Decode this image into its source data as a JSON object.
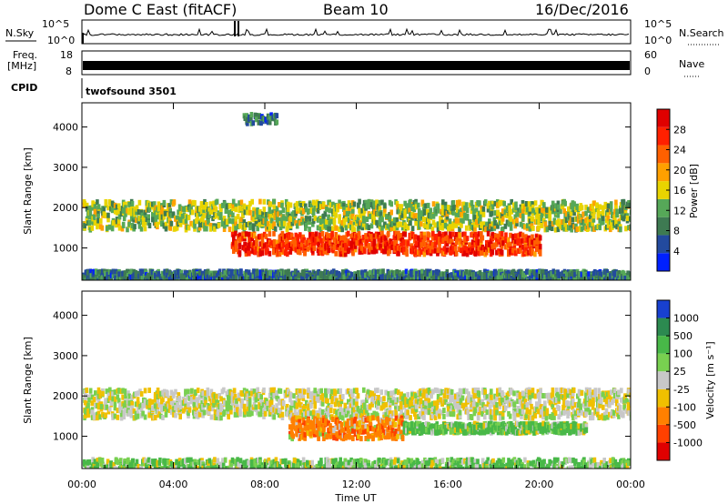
{
  "header": {
    "station": "Dome C East (fitACF)",
    "beam": "Beam 10",
    "date": "16/Dec/2016"
  },
  "status_panels": {
    "nsky_label": "N.Sky",
    "nsearch_label": "N.Search",
    "nsky_ticks": [
      "10^5",
      "10^0"
    ],
    "nsearch_ticks": [
      "10^5",
      "10^0"
    ],
    "freq_label_line1": "Freq.",
    "freq_label_line2": "[MHz]",
    "freq_ticks": [
      "18",
      "8"
    ],
    "nave_label": "Nave",
    "nave_ticks": [
      "60",
      "0"
    ],
    "cpid_label": "CPID",
    "cpid_value": "twofsound 3501"
  },
  "colors": {
    "power_scale": [
      "#0020ff",
      "#234a9e",
      "#3e7a52",
      "#56a858",
      "#e8d400",
      "#ffa000",
      "#ff6000",
      "#ff2000",
      "#e00000"
    ],
    "velocity_scale": [
      "#1840d0",
      "#2c8a50",
      "#48b848",
      "#78d050",
      "#c8c8c8",
      "#f0c000",
      "#ff8000",
      "#ff4000",
      "#e00000"
    ],
    "power_key": "power-scale",
    "velocity_key": "velocity-scale"
  },
  "chart_data": [
    {
      "type": "heatmap",
      "title": "Power",
      "xlabel": "Time UT",
      "ylabel": "Slant Range [km]",
      "x_ticks": [
        "00:00",
        "04:00",
        "08:00",
        "12:00",
        "16:00",
        "20:00",
        "00:00"
      ],
      "y_ticks": [
        1000,
        2000,
        3000,
        4000
      ],
      "ylim": [
        200,
        4600
      ],
      "xlim": [
        0,
        24
      ],
      "colorbar_label": "Power [dB]",
      "colorbar_ticks": [
        4,
        8,
        12,
        16,
        20,
        24,
        28
      ],
      "colorbar_range": [
        0,
        32
      ],
      "echo_bands": [
        {
          "t_start": 0,
          "t_end": 24,
          "range": 1800,
          "value": 14
        },
        {
          "t_start": 6.5,
          "t_end": 20,
          "range": 1100,
          "value": 26
        },
        {
          "t_start": 0,
          "t_end": 24,
          "range": 300,
          "value": 8
        },
        {
          "t_start": 7,
          "t_end": 8.5,
          "range": 4200,
          "value": 8
        }
      ]
    },
    {
      "type": "heatmap",
      "title": "Velocity",
      "xlabel": "Time UT",
      "ylabel": "Slant Range [km]",
      "x_ticks": [
        "00:00",
        "04:00",
        "08:00",
        "12:00",
        "16:00",
        "20:00",
        "00:00"
      ],
      "y_ticks": [
        1000,
        2000,
        3000,
        4000
      ],
      "ylim": [
        200,
        4600
      ],
      "xlim": [
        0,
        24
      ],
      "colorbar_label": "Velocity [m s⁻¹]",
      "colorbar_ticks": [
        1000,
        500,
        100,
        25,
        -25,
        -100,
        -500,
        -1000
      ],
      "echo_bands": [
        {
          "t_start": 0,
          "t_end": 24,
          "range": 1800,
          "value": 0
        },
        {
          "t_start": 9,
          "t_end": 14,
          "range": 1200,
          "value": -300
        },
        {
          "t_start": 14,
          "t_end": 22,
          "range": 1200,
          "value": 150
        },
        {
          "t_start": 0,
          "t_end": 24,
          "range": 300,
          "value": 100
        }
      ]
    }
  ]
}
